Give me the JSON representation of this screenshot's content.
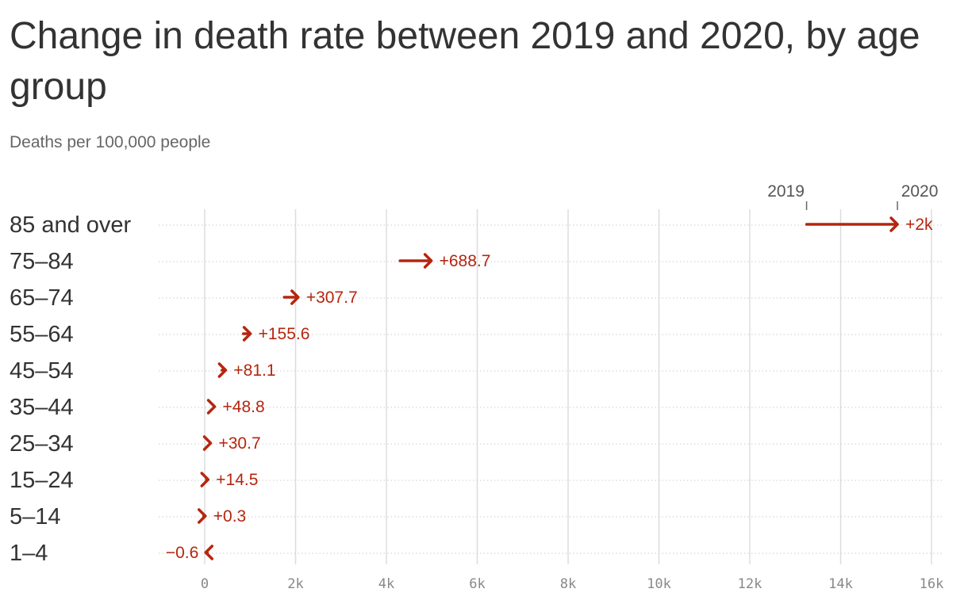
{
  "title": "Change in death rate between 2019 and 2020, by age group",
  "subtitle": "Deaths per 100,000 people",
  "colors": {
    "accent": "#b5260f",
    "text": "#333333",
    "muted": "#888888",
    "grid": "#dddddd"
  },
  "chart_data": {
    "type": "arrow",
    "title": "Change in death rate between 2019 and 2020, by age group",
    "subtitle": "Deaths per 100,000 people",
    "xlim": [
      0,
      16000
    ],
    "x_ticks": [
      0,
      2000,
      4000,
      6000,
      8000,
      10000,
      12000,
      14000,
      16000
    ],
    "x_tick_labels": [
      "0",
      "2k",
      "4k",
      "6k",
      "8k",
      "10k",
      "12k",
      "14k",
      "16k"
    ],
    "series_labels": {
      "start": "2019",
      "end": "2020"
    },
    "grid": true,
    "rows": [
      {
        "category": "85 and over",
        "v2019": 13250,
        "v2020": 15250,
        "change_label": "+2k"
      },
      {
        "category": "75–84",
        "v2019": 4300,
        "v2020": 4989,
        "change_label": "+688.7"
      },
      {
        "category": "65–74",
        "v2019": 1750,
        "v2020": 2058,
        "change_label": "+307.7"
      },
      {
        "category": "55–64",
        "v2019": 850,
        "v2020": 1006,
        "change_label": "+155.6"
      },
      {
        "category": "45–54",
        "v2019": 380,
        "v2020": 461,
        "change_label": "+81.1"
      },
      {
        "category": "35–44",
        "v2019": 170,
        "v2020": 219,
        "change_label": "+48.8"
      },
      {
        "category": "25–34",
        "v2019": 100,
        "v2020": 131,
        "change_label": "+30.7"
      },
      {
        "category": "15–24",
        "v2019": 60,
        "v2020": 75,
        "change_label": "+14.5"
      },
      {
        "category": "5–14",
        "v2019": 13,
        "v2020": 13.3,
        "change_label": "+0.3"
      },
      {
        "category": "1–4",
        "v2019": 23,
        "v2020": 22.4,
        "change_label": "−0.6"
      }
    ]
  }
}
